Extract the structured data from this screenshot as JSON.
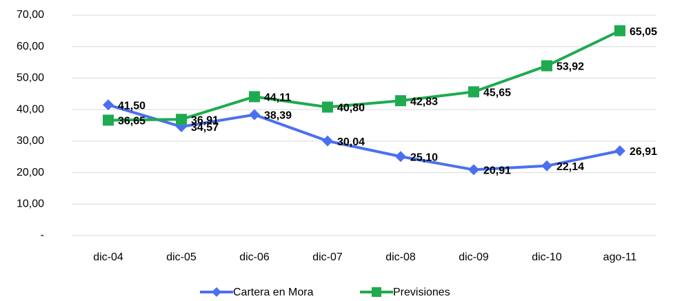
{
  "chart_data": {
    "type": "line",
    "categories": [
      "dic-04",
      "dic-05",
      "dic-06",
      "dic-07",
      "dic-08",
      "dic-09",
      "dic-10",
      "ago-11"
    ],
    "series": [
      {
        "name": "Cartera en Mora",
        "color": "#4a70f0",
        "marker": "diamond",
        "values": [
          41.5,
          34.57,
          38.39,
          30.04,
          25.1,
          20.91,
          22.14,
          26.91
        ],
        "value_labels": [
          "41,50",
          "34,57",
          "38,39",
          "30,04",
          "25,10",
          "20,91",
          "22,14",
          "26,91"
        ]
      },
      {
        "name": "Previsiones",
        "color": "#1faa50",
        "marker": "square",
        "values": [
          36.65,
          36.91,
          44.11,
          40.8,
          42.83,
          45.65,
          53.92,
          65.05
        ],
        "value_labels": [
          "36,65",
          "36,91",
          "44,11",
          "40,80",
          "42,83",
          "45,65",
          "53,92",
          "65,05"
        ]
      }
    ],
    "ylim": [
      0,
      70
    ],
    "yticks": [
      {
        "value": 0,
        "label": "-"
      },
      {
        "value": 10,
        "label": "10,00"
      },
      {
        "value": 20,
        "label": "20,00"
      },
      {
        "value": 30,
        "label": "30,00"
      },
      {
        "value": 40,
        "label": "40,00"
      },
      {
        "value": 50,
        "label": "50,00"
      },
      {
        "value": 60,
        "label": "60,00"
      },
      {
        "value": 70,
        "label": "70,00"
      }
    ],
    "grid": true
  }
}
